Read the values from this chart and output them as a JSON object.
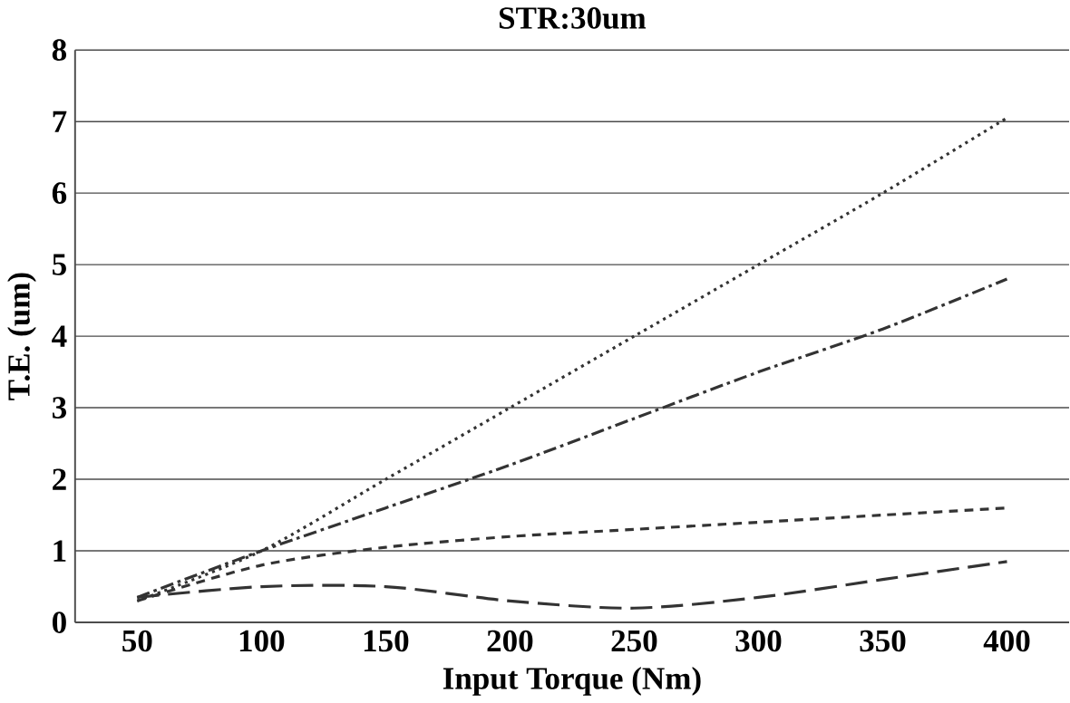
{
  "chart_data": {
    "type": "line",
    "title": "STR:30um",
    "xlabel": "Input Torque (Nm)",
    "ylabel": "T.E. (um)",
    "categories": [
      "50",
      "100",
      "150",
      "200",
      "250",
      "300",
      "350",
      "400"
    ],
    "ylim": [
      0,
      8
    ],
    "yticks": [
      0,
      1,
      2,
      3,
      4,
      5,
      6,
      7,
      8
    ],
    "grid": "y",
    "marker": "none",
    "series": [
      {
        "color": "#333333",
        "line_style": "dotted",
        "values": [
          0.3,
          1.0,
          2.0,
          3.0,
          4.0,
          5.0,
          6.0,
          7.05
        ]
      },
      {
        "color": "#333333",
        "line_style": "dashdot",
        "values": [
          0.35,
          1.0,
          1.6,
          2.2,
          2.85,
          3.5,
          4.1,
          4.8
        ]
      },
      {
        "color": "#333333",
        "line_style": "dashed",
        "values": [
          0.3,
          0.8,
          1.05,
          1.2,
          1.3,
          1.4,
          1.5,
          1.6
        ]
      },
      {
        "color": "#333333",
        "line_style": "longdashed",
        "values": [
          0.35,
          0.5,
          0.5,
          0.3,
          0.2,
          0.35,
          0.6,
          0.85
        ]
      }
    ]
  }
}
